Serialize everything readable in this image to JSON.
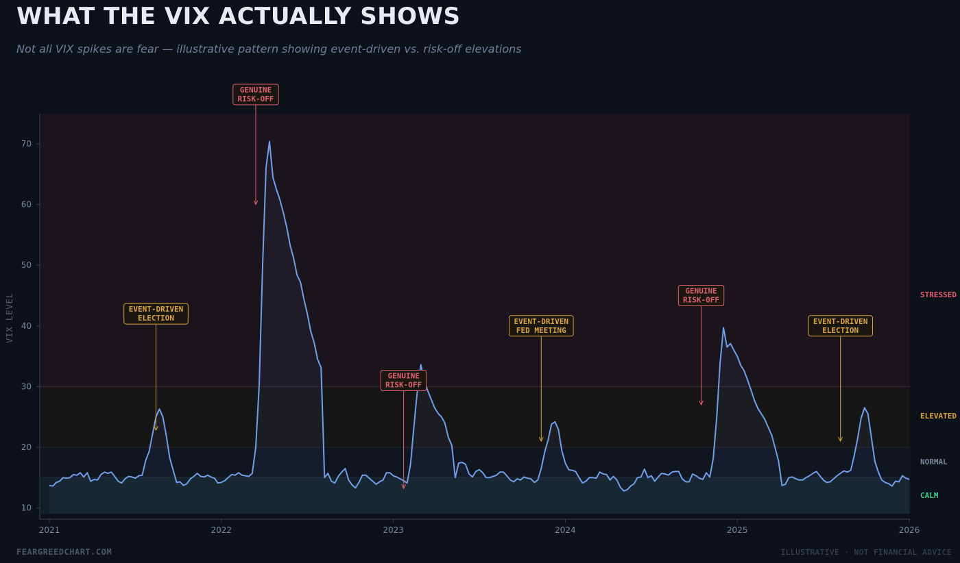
{
  "chart_data": {
    "type": "line",
    "title": "WHAT THE VIX ACTUALLY SHOWS",
    "subtitle": "Not all VIX spikes are fear — illustrative pattern showing event-driven vs. risk-off elevations",
    "ylabel": "VIX LEVEL",
    "xlim": [
      2021,
      2026
    ],
    "ylim": [
      8,
      75
    ],
    "x_ticks": [
      2021,
      2022,
      2023,
      2024,
      2025,
      2026
    ],
    "y_ticks": [
      10,
      20,
      30,
      40,
      50,
      60,
      70
    ],
    "grid": false,
    "zones": [
      {
        "name": "CALM",
        "from": 9,
        "to": 15,
        "color": "#3ecf8e"
      },
      {
        "name": "NORMAL",
        "from": 15,
        "to": 20,
        "color": "#7a879c"
      },
      {
        "name": "ELEVATED",
        "from": 20,
        "to": 30,
        "color": "#d9a441"
      },
      {
        "name": "STRESSED",
        "from": 30,
        "to": 75,
        "color": "#e0606e"
      }
    ],
    "series": [
      {
        "color": "#6f9fe8",
        "points": [
          [
            2021.0,
            13.7
          ],
          [
            2021.02,
            13.6
          ],
          [
            2021.04,
            14.2
          ],
          [
            2021.06,
            14.4
          ],
          [
            2021.08,
            15.0
          ],
          [
            2021.1,
            14.9
          ],
          [
            2021.12,
            15.0
          ],
          [
            2021.14,
            15.5
          ],
          [
            2021.16,
            15.4
          ],
          [
            2021.18,
            15.8
          ],
          [
            2021.2,
            15.1
          ],
          [
            2021.22,
            15.8
          ],
          [
            2021.24,
            14.4
          ],
          [
            2021.26,
            14.7
          ],
          [
            2021.28,
            14.6
          ],
          [
            2021.3,
            15.5
          ],
          [
            2021.32,
            15.9
          ],
          [
            2021.34,
            15.7
          ],
          [
            2021.36,
            15.9
          ],
          [
            2021.38,
            15.2
          ],
          [
            2021.4,
            14.4
          ],
          [
            2021.42,
            14.1
          ],
          [
            2021.44,
            14.8
          ],
          [
            2021.46,
            15.2
          ],
          [
            2021.48,
            15.1
          ],
          [
            2021.5,
            14.9
          ],
          [
            2021.52,
            15.3
          ],
          [
            2021.54,
            15.4
          ],
          [
            2021.56,
            17.8
          ],
          [
            2021.58,
            19.3
          ],
          [
            2021.6,
            22.2
          ],
          [
            2021.62,
            25.0
          ],
          [
            2021.64,
            26.3
          ],
          [
            2021.66,
            25.0
          ],
          [
            2021.68,
            21.9
          ],
          [
            2021.7,
            18.2
          ],
          [
            2021.72,
            16.2
          ],
          [
            2021.74,
            14.2
          ],
          [
            2021.76,
            14.3
          ],
          [
            2021.78,
            13.7
          ],
          [
            2021.8,
            14.0
          ],
          [
            2021.82,
            14.8
          ],
          [
            2021.84,
            15.2
          ],
          [
            2021.86,
            15.7
          ],
          [
            2021.88,
            15.2
          ],
          [
            2021.9,
            15.1
          ],
          [
            2021.92,
            15.4
          ],
          [
            2021.94,
            15.1
          ],
          [
            2021.96,
            14.9
          ],
          [
            2021.98,
            14.1
          ],
          [
            2022.0,
            14.2
          ],
          [
            2022.02,
            14.5
          ],
          [
            2022.04,
            15.0
          ],
          [
            2022.06,
            15.5
          ],
          [
            2022.08,
            15.4
          ],
          [
            2022.1,
            15.8
          ],
          [
            2022.12,
            15.4
          ],
          [
            2022.14,
            15.3
          ],
          [
            2022.16,
            15.2
          ],
          [
            2022.18,
            15.7
          ],
          [
            2022.2,
            20.0
          ],
          [
            2022.22,
            30.3
          ],
          [
            2022.24,
            50.0
          ],
          [
            2022.26,
            66.1
          ],
          [
            2022.28,
            70.4
          ],
          [
            2022.3,
            64.5
          ],
          [
            2022.32,
            62.5
          ],
          [
            2022.34,
            60.8
          ],
          [
            2022.36,
            58.7
          ],
          [
            2022.38,
            56.3
          ],
          [
            2022.4,
            53.3
          ],
          [
            2022.42,
            51.2
          ],
          [
            2022.44,
            48.4
          ],
          [
            2022.46,
            47.2
          ],
          [
            2022.48,
            44.4
          ],
          [
            2022.5,
            42.0
          ],
          [
            2022.52,
            39.1
          ],
          [
            2022.54,
            37.2
          ],
          [
            2022.56,
            34.5
          ],
          [
            2022.58,
            33.1
          ],
          [
            2022.6,
            15.0
          ],
          [
            2022.62,
            15.7
          ],
          [
            2022.64,
            14.4
          ],
          [
            2022.66,
            14.1
          ],
          [
            2022.68,
            15.2
          ],
          [
            2022.7,
            15.9
          ],
          [
            2022.72,
            16.5
          ],
          [
            2022.74,
            14.6
          ],
          [
            2022.76,
            13.8
          ],
          [
            2022.78,
            13.3
          ],
          [
            2022.8,
            14.2
          ],
          [
            2022.82,
            15.4
          ],
          [
            2022.84,
            15.4
          ],
          [
            2022.86,
            14.9
          ],
          [
            2022.88,
            14.4
          ],
          [
            2022.9,
            13.9
          ],
          [
            2022.92,
            14.3
          ],
          [
            2022.94,
            14.6
          ],
          [
            2022.96,
            15.8
          ],
          [
            2022.98,
            15.8
          ],
          [
            2023.0,
            15.3
          ],
          [
            2023.02,
            15.1
          ],
          [
            2023.04,
            14.8
          ],
          [
            2023.06,
            14.5
          ],
          [
            2023.08,
            14.1
          ],
          [
            2023.1,
            17.2
          ],
          [
            2023.12,
            23.5
          ],
          [
            2023.14,
            29.4
          ],
          [
            2023.16,
            33.6
          ],
          [
            2023.18,
            31.0
          ],
          [
            2023.2,
            29.3
          ],
          [
            2023.22,
            27.9
          ],
          [
            2023.24,
            26.5
          ],
          [
            2023.26,
            25.6
          ],
          [
            2023.28,
            25.0
          ],
          [
            2023.3,
            24.0
          ],
          [
            2023.32,
            21.6
          ],
          [
            2023.34,
            20.3
          ],
          [
            2023.36,
            15.0
          ],
          [
            2023.38,
            17.4
          ],
          [
            2023.4,
            17.5
          ],
          [
            2023.42,
            17.2
          ],
          [
            2023.44,
            15.6
          ],
          [
            2023.46,
            15.1
          ],
          [
            2023.48,
            16.0
          ],
          [
            2023.5,
            16.3
          ],
          [
            2023.52,
            15.8
          ],
          [
            2023.54,
            15.0
          ],
          [
            2023.56,
            15.0
          ],
          [
            2023.58,
            15.2
          ],
          [
            2023.6,
            15.4
          ],
          [
            2023.62,
            15.9
          ],
          [
            2023.64,
            15.9
          ],
          [
            2023.66,
            15.3
          ],
          [
            2023.68,
            14.6
          ],
          [
            2023.7,
            14.3
          ],
          [
            2023.72,
            14.8
          ],
          [
            2023.74,
            14.6
          ],
          [
            2023.76,
            15.1
          ],
          [
            2023.78,
            14.9
          ],
          [
            2023.8,
            14.8
          ],
          [
            2023.82,
            14.2
          ],
          [
            2023.84,
            14.6
          ],
          [
            2023.86,
            16.5
          ],
          [
            2023.88,
            19.2
          ],
          [
            2023.9,
            21.2
          ],
          [
            2023.92,
            23.8
          ],
          [
            2023.94,
            24.2
          ],
          [
            2023.96,
            22.9
          ],
          [
            2023.98,
            19.4
          ],
          [
            2024.0,
            17.4
          ],
          [
            2024.02,
            16.3
          ],
          [
            2024.04,
            16.2
          ],
          [
            2024.06,
            16.0
          ],
          [
            2024.08,
            15.0
          ],
          [
            2024.1,
            14.1
          ],
          [
            2024.12,
            14.4
          ],
          [
            2024.14,
            15.0
          ],
          [
            2024.16,
            15.0
          ],
          [
            2024.18,
            14.9
          ],
          [
            2024.2,
            15.9
          ],
          [
            2024.22,
            15.6
          ],
          [
            2024.24,
            15.5
          ],
          [
            2024.26,
            14.6
          ],
          [
            2024.28,
            15.2
          ],
          [
            2024.3,
            14.6
          ],
          [
            2024.32,
            13.4
          ],
          [
            2024.34,
            12.8
          ],
          [
            2024.36,
            13.0
          ],
          [
            2024.38,
            13.6
          ],
          [
            2024.4,
            14.0
          ],
          [
            2024.42,
            15.0
          ],
          [
            2024.44,
            15.1
          ],
          [
            2024.46,
            16.4
          ],
          [
            2024.48,
            15.0
          ],
          [
            2024.5,
            15.3
          ],
          [
            2024.52,
            14.4
          ],
          [
            2024.54,
            15.1
          ],
          [
            2024.56,
            15.7
          ],
          [
            2024.58,
            15.6
          ],
          [
            2024.6,
            15.4
          ],
          [
            2024.62,
            15.9
          ],
          [
            2024.64,
            16.0
          ],
          [
            2024.66,
            16.0
          ],
          [
            2024.68,
            14.8
          ],
          [
            2024.7,
            14.3
          ],
          [
            2024.72,
            14.3
          ],
          [
            2024.74,
            15.6
          ],
          [
            2024.76,
            15.3
          ],
          [
            2024.78,
            14.9
          ],
          [
            2024.8,
            14.7
          ],
          [
            2024.82,
            15.8
          ],
          [
            2024.84,
            15.1
          ],
          [
            2024.86,
            18.1
          ],
          [
            2024.88,
            24.7
          ],
          [
            2024.9,
            33.8
          ],
          [
            2024.92,
            39.7
          ],
          [
            2024.94,
            36.5
          ],
          [
            2024.96,
            37.1
          ],
          [
            2024.98,
            36.0
          ],
          [
            2025.0,
            35.0
          ],
          [
            2025.02,
            33.5
          ],
          [
            2025.04,
            32.6
          ],
          [
            2025.06,
            31.1
          ],
          [
            2025.08,
            29.4
          ],
          [
            2025.1,
            27.7
          ],
          [
            2025.12,
            26.4
          ],
          [
            2025.14,
            25.5
          ],
          [
            2025.16,
            24.6
          ],
          [
            2025.18,
            23.3
          ],
          [
            2025.2,
            22.0
          ],
          [
            2025.22,
            19.9
          ],
          [
            2025.24,
            17.7
          ],
          [
            2025.26,
            13.7
          ],
          [
            2025.28,
            13.9
          ],
          [
            2025.3,
            15.0
          ],
          [
            2025.32,
            15.1
          ],
          [
            2025.34,
            14.8
          ],
          [
            2025.36,
            14.6
          ],
          [
            2025.38,
            14.6
          ],
          [
            2025.4,
            15.0
          ],
          [
            2025.42,
            15.3
          ],
          [
            2025.44,
            15.7
          ],
          [
            2025.46,
            16.0
          ],
          [
            2025.48,
            15.3
          ],
          [
            2025.5,
            14.6
          ],
          [
            2025.52,
            14.2
          ],
          [
            2025.54,
            14.3
          ],
          [
            2025.56,
            14.8
          ],
          [
            2025.58,
            15.3
          ],
          [
            2025.6,
            15.7
          ],
          [
            2025.62,
            16.1
          ],
          [
            2025.64,
            15.9
          ],
          [
            2025.66,
            16.2
          ],
          [
            2025.68,
            18.6
          ],
          [
            2025.7,
            21.5
          ],
          [
            2025.72,
            24.8
          ],
          [
            2025.74,
            26.5
          ],
          [
            2025.76,
            25.5
          ],
          [
            2025.78,
            21.6
          ],
          [
            2025.8,
            17.7
          ],
          [
            2025.82,
            15.9
          ],
          [
            2025.84,
            14.6
          ],
          [
            2025.86,
            14.2
          ],
          [
            2025.88,
            14.0
          ],
          [
            2025.9,
            13.6
          ],
          [
            2025.92,
            14.4
          ],
          [
            2025.94,
            14.3
          ],
          [
            2025.96,
            15.3
          ],
          [
            2025.98,
            14.9
          ],
          [
            2026.0,
            14.7
          ]
        ]
      }
    ],
    "annotations": [
      {
        "line1": "EVENT-DRIVEN",
        "line2": "ELECTION",
        "x": 2021.62,
        "label_y": 42,
        "arrow_to": 22.8,
        "kind": "event"
      },
      {
        "line1": "GENUINE",
        "line2": "RISK-OFF",
        "x": 2022.2,
        "label_y": 78,
        "arrow_to": 60,
        "kind": "risk"
      },
      {
        "line1": "GENUINE",
        "line2": "RISK-OFF",
        "x": 2023.06,
        "label_y": 31,
        "arrow_to": 13.2,
        "kind": "risk"
      },
      {
        "line1": "EVENT-DRIVEN",
        "line2": "FED MEETING",
        "x": 2023.86,
        "label_y": 40,
        "arrow_to": 21,
        "kind": "event"
      },
      {
        "line1": "GENUINE",
        "line2": "RISK-OFF",
        "x": 2024.79,
        "label_y": 45,
        "arrow_to": 27,
        "kind": "risk"
      },
      {
        "line1": "EVENT-DRIVEN",
        "line2": "ELECTION",
        "x": 2025.6,
        "label_y": 40,
        "arrow_to": 21,
        "kind": "event"
      }
    ],
    "colors": {
      "line": "#6f9fe8",
      "event": "#d9a441",
      "risk": "#e0606e"
    }
  },
  "footer": {
    "left": "FEARGREEDCHART.COM",
    "right": "ILLUSTRATIVE · NOT FINANCIAL ADVICE"
  }
}
